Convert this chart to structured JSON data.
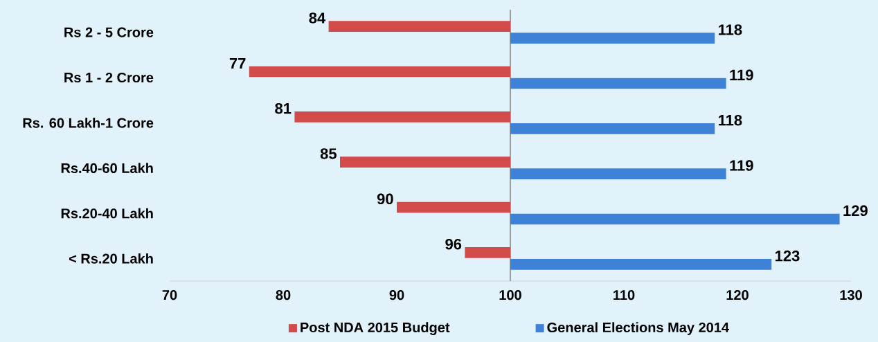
{
  "chart_data": {
    "type": "bar",
    "orientation": "horizontal",
    "categories": [
      "Rs 2 - 5 Crore",
      "Rs 1 - 2 Crore",
      "Rs. 60 Lakh-1 Crore",
      "Rs.40-60 Lakh",
      "Rs.20-40 Lakh",
      "< Rs.20 Lakh"
    ],
    "series": [
      {
        "name": "Post NDA 2015 Budget",
        "color": "#d24a4a",
        "base": [
          100,
          100,
          100,
          100,
          100,
          100
        ],
        "values": [
          -16,
          -23,
          -19,
          -15,
          -10,
          -4
        ],
        "value_labels": [
          "84",
          "77",
          "81",
          "85",
          "90",
          "96"
        ]
      },
      {
        "name": "General Elections May 2014",
        "color": "#3d82d6",
        "base": [
          100,
          100,
          100,
          100,
          100,
          100
        ],
        "values": [
          18,
          19,
          18,
          19,
          29,
          23
        ],
        "value_labels": [
          "118",
          "119",
          "118",
          "119",
          "129",
          "123"
        ]
      }
    ],
    "xlim": [
      70,
      130
    ],
    "xticks": [
      70,
      80,
      90,
      100,
      110,
      120,
      130
    ],
    "ref_lines": [
      {
        "axis": "x",
        "value": 100,
        "color": "#888888"
      }
    ],
    "grid": false,
    "legend": "bottom"
  }
}
